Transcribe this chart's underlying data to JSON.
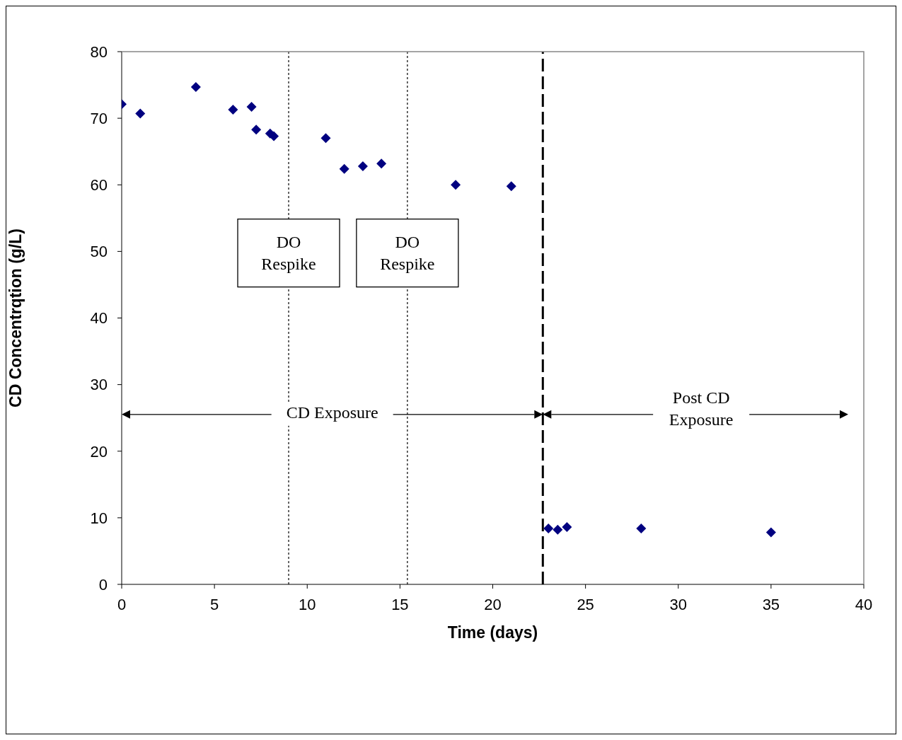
{
  "chart_data": {
    "type": "scatter",
    "xlabel": "Time (days)",
    "ylabel": "CD Concentrqtion (g/L)",
    "x": [
      0,
      1,
      4,
      6,
      7,
      7.25,
      8,
      8.2,
      11,
      12,
      13,
      14,
      18,
      21,
      23,
      23.5,
      24,
      28,
      35
    ],
    "series": [
      {
        "color": "#000080",
        "values": [
          72.1,
          70.7,
          74.7,
          71.3,
          71.7,
          68.3,
          67.7,
          67.3,
          67.0,
          62.4,
          62.8,
          63.2,
          60.0,
          59.8,
          8.4,
          8.2,
          8.6,
          8.4,
          7.8
        ]
      }
    ],
    "marker": "diamond",
    "xlim": [
      0,
      40
    ],
    "xticks": [
      0,
      5,
      10,
      15,
      20,
      25,
      30,
      35,
      40
    ],
    "ylim": [
      0,
      80
    ],
    "yticks": [
      0,
      10,
      20,
      30,
      40,
      50,
      60,
      70,
      80
    ],
    "ref_lines": [
      {
        "axis": "x",
        "value": 9,
        "label": "DO\nRespike",
        "line_style": "dotted"
      },
      {
        "axis": "x",
        "value": 15.4,
        "label": "DO\nRespike",
        "line_style": "dotted"
      },
      {
        "axis": "x",
        "value": 22.7,
        "line_style": "dashed"
      }
    ],
    "annotations": [
      "CD Exposure",
      "Post CD\nExposure"
    ]
  }
}
